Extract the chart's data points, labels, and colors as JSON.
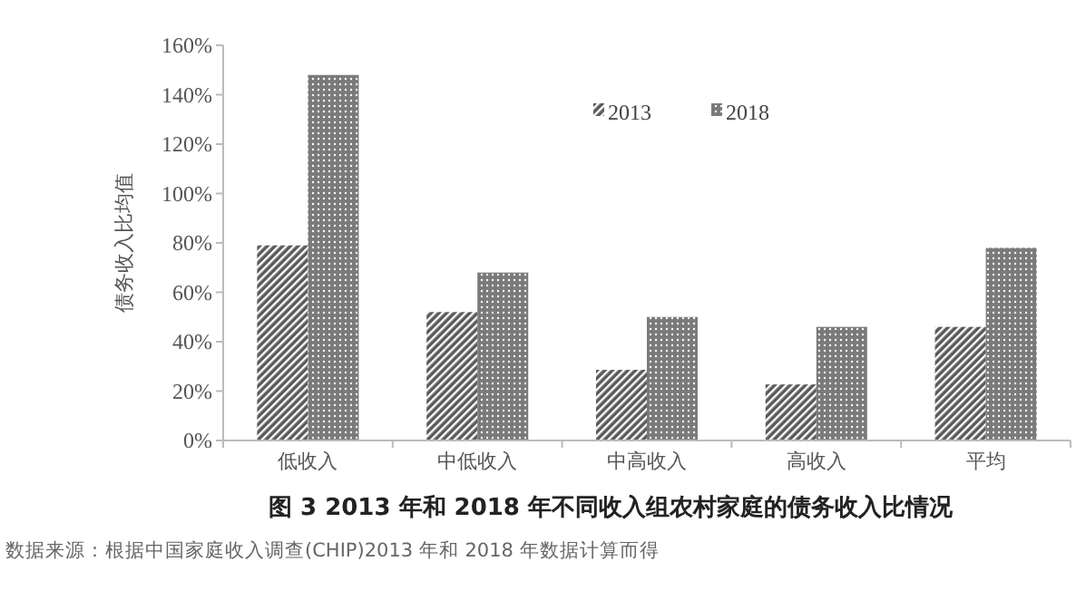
{
  "chart_data": {
    "type": "bar",
    "title": "图 3  2013 年和 2018 年不同收入组农村家庭的债务收入比情况",
    "ylabel": "债务收入比均值",
    "categories": [
      "低收入",
      "中低收入",
      "中高收入",
      "高收入",
      "平均"
    ],
    "series": [
      {
        "name": "2013",
        "color": "#5a5a5a",
        "values": [
          79,
          52,
          28.6,
          22.7,
          46
        ]
      },
      {
        "name": "2018",
        "color": "#7a7a7a",
        "values": [
          148,
          68,
          50,
          46,
          78
        ]
      }
    ],
    "ylim": [
      0,
      160
    ],
    "yticks": [
      {
        "value": 0,
        "label": "0%"
      },
      {
        "value": 20,
        "label": "20%"
      },
      {
        "value": 40,
        "label": "40%"
      },
      {
        "value": 60,
        "label": "60%"
      },
      {
        "value": 80,
        "label": "80%"
      },
      {
        "value": 100,
        "label": "100%"
      },
      {
        "value": 120,
        "label": "120%"
      },
      {
        "value": 140,
        "label": "140%"
      },
      {
        "value": 160,
        "label": "160%"
      }
    ],
    "grid": false,
    "legend": "top",
    "annotations": [
      "数据来源：根据中国家庭收入调查(CHIP)2013 年和 2018 年数据计算而得"
    ]
  }
}
